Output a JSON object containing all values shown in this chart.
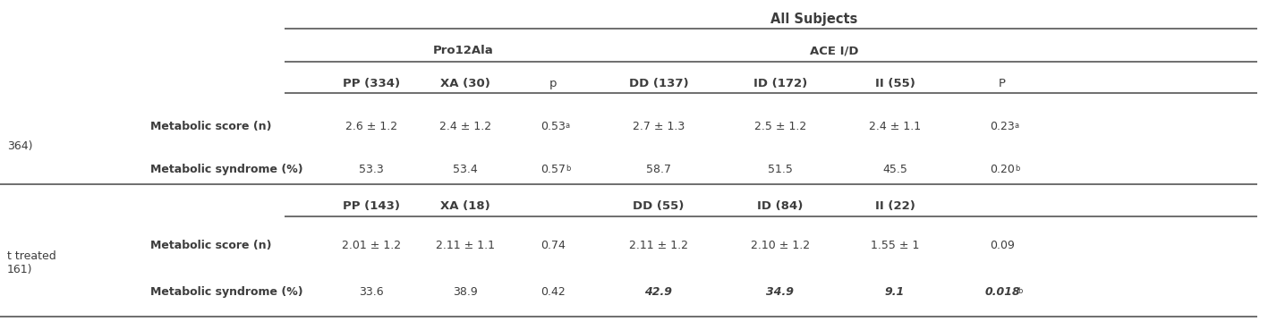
{
  "bg_color": "#ffffff",
  "text_color": "#3d3d3d",
  "line_color": "#555555",
  "header_top": "All Subjects",
  "subheader_pro12ala": "Pro12Ala",
  "subheader_ace": "ACE I/D",
  "col_headers_row1": [
    "PP (334)",
    "XA (30)",
    "p",
    "DD (137)",
    "ID (172)",
    "II (55)",
    "P"
  ],
  "col_headers_row2": [
    "PP (143)",
    "XA (18)",
    "",
    "DD (55)",
    "ID (84)",
    "II (22)",
    ""
  ],
  "row1_data": [
    "2.6 ± 1.2",
    "2.4 ± 1.2",
    "0.53",
    "2.7 ± 1.3",
    "2.5 ± 1.2",
    "2.4 ± 1.1",
    "0.23"
  ],
  "row1_superscripts": [
    "",
    "",
    "a",
    "",
    "",
    "",
    "a"
  ],
  "row2_data": [
    "53.3",
    "53.4",
    "0.57",
    "58.7",
    "51.5",
    "45.5",
    "0.20"
  ],
  "row2_superscripts": [
    "",
    "",
    "b",
    "",
    "",
    "",
    "b"
  ],
  "row3_data": [
    "2.01 ± 1.2",
    "2.11 ± 1.1",
    "0.74",
    "2.11 ± 1.2",
    "2.10 ± 1.2",
    "1.55 ± 1",
    "0.09"
  ],
  "row3_superscripts": [
    "",
    "",
    "",
    "",
    "",
    "",
    ""
  ],
  "row4_data": [
    "33.6",
    "38.9",
    "0.42",
    "42.9",
    "34.9",
    "9.1",
    "0.018"
  ],
  "row4_superscripts": [
    "",
    "",
    "",
    "",
    "",
    "",
    "b"
  ],
  "row4_bold": [
    false,
    false,
    false,
    true,
    true,
    true,
    true
  ],
  "font_size": 9.0,
  "header_font_size": 10.5,
  "col_header_font_size": 9.5
}
